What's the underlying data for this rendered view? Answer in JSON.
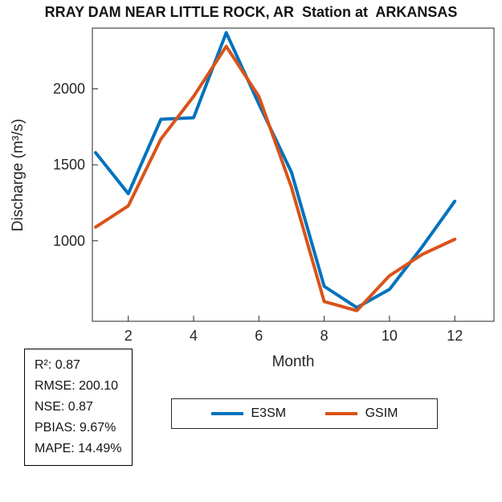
{
  "title": "RRAY DAM NEAR LITTLE ROCK, AR  Station at  ARKANSAS",
  "axes": {
    "xlabel": "Month",
    "ylabel": "Discharge (m³/s)"
  },
  "stats_box": {
    "lines": [
      "R²: 0.87",
      "RMSE: 200.10",
      "NSE: 0.87",
      "PBIAS: 9.67%",
      "MAPE: 14.49%"
    ]
  },
  "legend": {
    "entries": [
      {
        "label": "E3SM",
        "color": "#0072BD"
      },
      {
        "label": "GSIM",
        "color": "#D95319"
      }
    ]
  },
  "chart_data": {
    "type": "line",
    "title": "RRAY DAM NEAR LITTLE ROCK, AR  Station at  ARKANSAS",
    "xlabel": "Month",
    "ylabel": "Discharge (m³/s)",
    "x": [
      1,
      2,
      3,
      4,
      5,
      6,
      7,
      8,
      9,
      10,
      11,
      12
    ],
    "series": [
      {
        "name": "E3SM",
        "color": "#0072BD",
        "values": [
          1580,
          1310,
          1800,
          1810,
          2370,
          1900,
          1450,
          700,
          560,
          680,
          960,
          1260
        ]
      },
      {
        "name": "GSIM",
        "color": "#D95319",
        "values": [
          1090,
          1230,
          1670,
          1950,
          2280,
          1950,
          1350,
          600,
          540,
          770,
          910,
          1010
        ]
      }
    ],
    "xticks": [
      2,
      4,
      6,
      8,
      10,
      12
    ],
    "yticks": [
      1000,
      1500,
      2000
    ],
    "xlim": [
      0.9,
      13.2
    ],
    "ylim": [
      470,
      2400
    ],
    "grid": false,
    "legend_position": "below"
  }
}
